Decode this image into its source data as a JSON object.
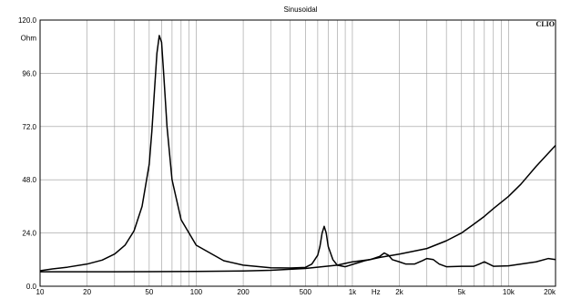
{
  "chart_data": {
    "type": "line",
    "title": "Sinusoidal",
    "brand": "CLIO",
    "ylabel": "Ohm",
    "xunit": "Hz",
    "xscale": "log",
    "xlim": [
      10,
      20000
    ],
    "ylim": [
      0,
      120
    ],
    "grid": true,
    "yticks": [
      "0.0",
      "24.0",
      "48.0",
      "72.0",
      "96.0",
      "120.0"
    ],
    "ytick_values": [
      0,
      24,
      48,
      72,
      96,
      120
    ],
    "xticks": [
      "10",
      "20",
      "50",
      "100",
      "200",
      "500",
      "1k",
      "2k",
      "5k",
      "10k",
      "20k"
    ],
    "xtick_values": [
      10,
      20,
      50,
      100,
      200,
      500,
      1000,
      2000,
      5000,
      10000,
      20000
    ],
    "series": [
      {
        "x": [
          10,
          12,
          15,
          20,
          25,
          30,
          35,
          40,
          45,
          50,
          52,
          54,
          56,
          58,
          60,
          62,
          65,
          70,
          80,
          100,
          150,
          200,
          300,
          400,
          500,
          550,
          600,
          620,
          640,
          660,
          680,
          700,
          750,
          800,
          900,
          1000,
          1200,
          1500,
          2000,
          3000,
          4000,
          5000,
          6000,
          7000,
          8000,
          10000,
          12000,
          15000,
          20000
        ],
        "y": [
          7.0,
          7.8,
          8.6,
          10.0,
          11.8,
          14.5,
          18.5,
          25.0,
          36.0,
          55.0,
          70.0,
          88.0,
          105.0,
          113.0,
          110.0,
          95.0,
          72.0,
          48.0,
          30.0,
          18.5,
          11.5,
          9.5,
          8.3,
          8.2,
          8.5,
          10.0,
          14.0,
          18.0,
          24.0,
          27.0,
          24.0,
          18.0,
          12.0,
          9.5,
          8.8,
          9.8,
          11.5,
          13.0,
          14.5,
          17.0,
          20.5,
          24.0,
          28.0,
          31.5,
          35.0,
          40.5,
          46.0,
          54.0,
          63.5
        ]
      },
      {
        "x": [
          10,
          20,
          50,
          100,
          200,
          300,
          500,
          800,
          1000,
          1300,
          1500,
          1600,
          1700,
          1800,
          2000,
          2200,
          2500,
          2800,
          3000,
          3300,
          3600,
          4000,
          5000,
          6000,
          6500,
          7000,
          8000,
          10000,
          15000,
          18000,
          20000
        ],
        "y": [
          6.5,
          6.5,
          6.6,
          6.7,
          6.9,
          7.2,
          8.0,
          9.5,
          11.0,
          12.0,
          13.5,
          15.0,
          14.0,
          12.0,
          11.0,
          10.0,
          10.0,
          11.5,
          12.5,
          12.0,
          10.0,
          8.8,
          9.0,
          9.0,
          10.0,
          11.0,
          9.0,
          9.2,
          11.0,
          12.5,
          12.0
        ]
      }
    ]
  }
}
